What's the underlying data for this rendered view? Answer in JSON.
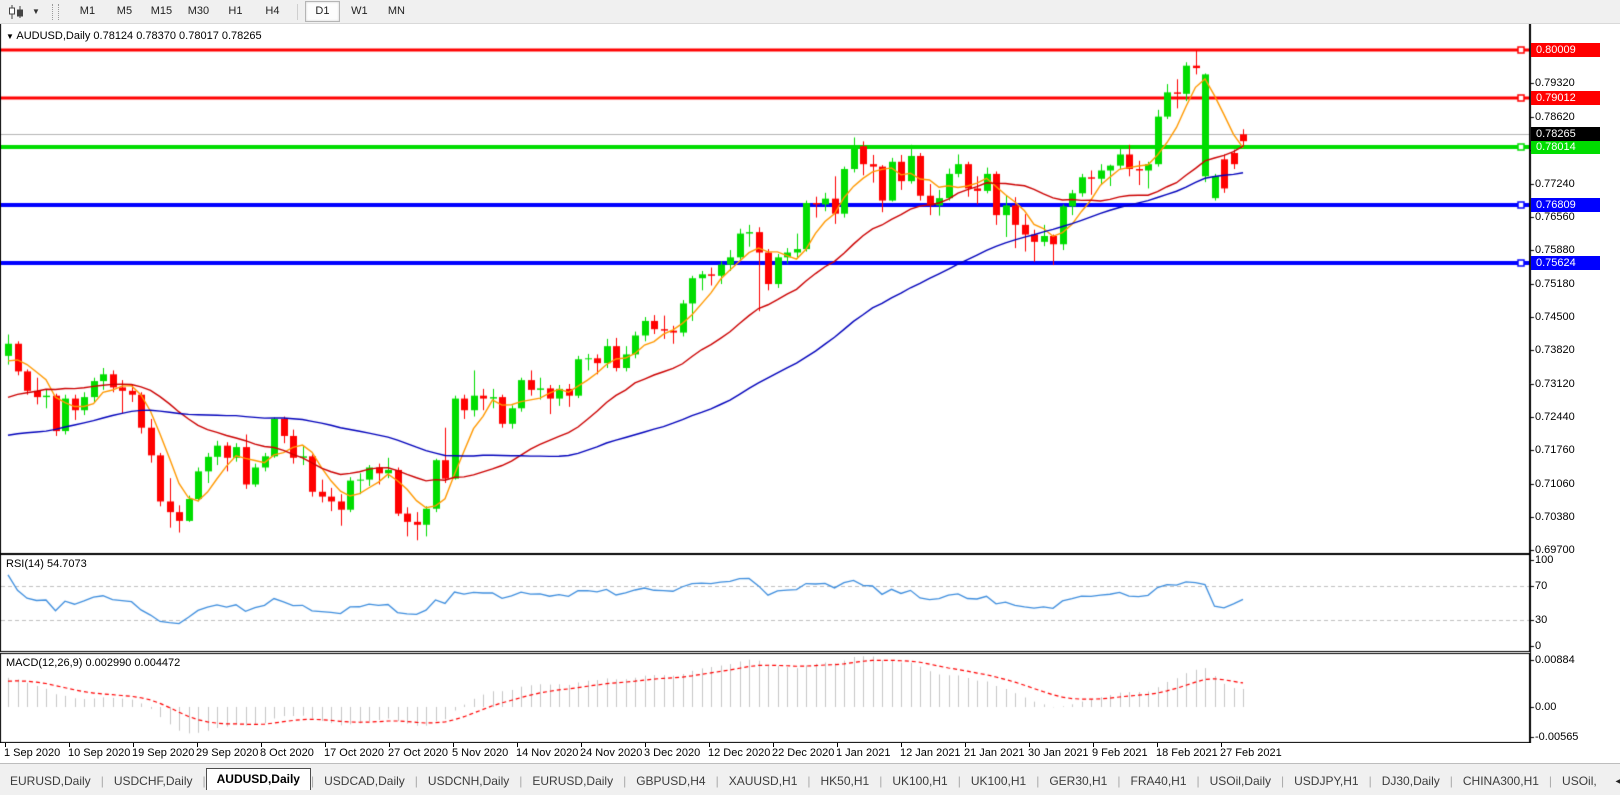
{
  "toolbar": {
    "chart_tool_icon": "candlestick-chart-icon",
    "dropdown_caret": "▼",
    "timeframes": [
      "M1",
      "M5",
      "M15",
      "M30",
      "H1",
      "H4",
      "D1",
      "W1",
      "MN"
    ],
    "active_timeframe": "D1",
    "group_break_after": "H4"
  },
  "chart": {
    "title_caret": "▼",
    "symbol_title": "AUDUSD,Daily",
    "ohlc_text": "0.78124 0.78370 0.78017 0.78265",
    "rsi_label": "RSI(14) 54.7073",
    "macd_label": "MACD(12,26,9) 0.002990 0.004472"
  },
  "chart_data": {
    "type": "candlestick",
    "symbol": "AUDUSD",
    "timeframe": "Daily",
    "ohlc_header": {
      "open": 0.78124,
      "high": 0.7837,
      "low": 0.78017,
      "close": 0.78265
    },
    "price_range": {
      "max": 0.80518,
      "min": 0.69638
    },
    "price_axis_ticks": [
      "0.79320",
      "0.78620",
      "0.77940",
      "0.77240",
      "0.76560",
      "0.75880",
      "0.75180",
      "0.74500",
      "0.73820",
      "0.73120",
      "0.72440",
      "0.71760",
      "0.71060",
      "0.70380",
      "0.69700"
    ],
    "hlines": [
      {
        "price": 0.80009,
        "label": "0.80009",
        "color": "#ff0000",
        "width": 3
      },
      {
        "price": 0.79012,
        "label": "0.79012",
        "color": "#ff0000",
        "width": 3
      },
      {
        "price": 0.78014,
        "label": "0.78014",
        "color": "#00dd00",
        "width": 4
      },
      {
        "price": 0.76809,
        "label": "0.76809",
        "color": "#0000ff",
        "width": 4
      },
      {
        "price": 0.75624,
        "label": "0.75624",
        "color": "#0000ff",
        "width": 4
      }
    ],
    "current_price": {
      "price": 0.78265,
      "label": "0.78265",
      "line_color": "#b4b4b4",
      "badge_color": "#000000"
    },
    "candle_colors": {
      "bull": "#00dd00",
      "bear": "#ff0000"
    },
    "x_labels": [
      "1 Sep 2020",
      "10 Sep 2020",
      "19 Sep 2020",
      "29 Sep 2020",
      "8 Oct 2020",
      "17 Oct 2020",
      "27 Oct 2020",
      "5 Nov 2020",
      "14 Nov 2020",
      "24 Nov 2020",
      "3 Dec 2020",
      "12 Dec 2020",
      "22 Dec 2020",
      "1 Jan 2021",
      "12 Jan 2021",
      "21 Jan 2021",
      "30 Jan 2021",
      "9 Feb 2021",
      "18 Feb 2021",
      "27 Feb 2021"
    ],
    "moving_averages": [
      {
        "name": "fast-ma",
        "period": 5,
        "color": "#ff9900"
      },
      {
        "name": "mid-ma",
        "period": 20,
        "color": "#cc0000"
      },
      {
        "name": "slow-ma",
        "period": 45,
        "color": "#0000bb"
      }
    ],
    "indicator_warmup_closes": [
      0.705,
      0.7062,
      0.7075,
      0.7088,
      0.7102,
      0.709,
      0.7078,
      0.7095,
      0.7112,
      0.7128,
      0.7145,
      0.7162,
      0.7152,
      0.714,
      0.7155,
      0.7172,
      0.7188,
      0.7205,
      0.7193,
      0.718,
      0.7198,
      0.7215,
      0.7232,
      0.722,
      0.7208,
      0.7225,
      0.7242,
      0.726,
      0.7248,
      0.7265,
      0.7282,
      0.727,
      0.7288,
      0.7305,
      0.7322,
      0.731,
      0.7328,
      0.7345,
      0.7362,
      0.7368
    ],
    "candles": [
      [
        0.737,
        0.7414,
        0.7352,
        0.7395
      ],
      [
        0.7395,
        0.74,
        0.733,
        0.7338
      ],
      [
        0.7338,
        0.7342,
        0.729,
        0.7298
      ],
      [
        0.7298,
        0.7325,
        0.727,
        0.7285
      ],
      [
        0.7285,
        0.73,
        0.7262,
        0.7288
      ],
      [
        0.7288,
        0.7292,
        0.7205,
        0.7215
      ],
      [
        0.7215,
        0.729,
        0.7208,
        0.7282
      ],
      [
        0.7282,
        0.729,
        0.7238,
        0.7258
      ],
      [
        0.7258,
        0.7295,
        0.7248,
        0.7285
      ],
      [
        0.7285,
        0.7325,
        0.7275,
        0.7318
      ],
      [
        0.7318,
        0.7345,
        0.73,
        0.7332
      ],
      [
        0.7332,
        0.734,
        0.7295,
        0.7305
      ],
      [
        0.7305,
        0.732,
        0.7252,
        0.7298
      ],
      [
        0.7298,
        0.731,
        0.7275,
        0.729
      ],
      [
        0.729,
        0.7295,
        0.721,
        0.7222
      ],
      [
        0.7222,
        0.724,
        0.715,
        0.7165
      ],
      [
        0.7165,
        0.717,
        0.706,
        0.707
      ],
      [
        0.707,
        0.7118,
        0.7016,
        0.7048
      ],
      [
        0.7048,
        0.7062,
        0.7006,
        0.703
      ],
      [
        0.703,
        0.7082,
        0.7028,
        0.7075
      ],
      [
        0.7075,
        0.714,
        0.707,
        0.7132
      ],
      [
        0.7132,
        0.717,
        0.7108,
        0.7162
      ],
      [
        0.7162,
        0.7195,
        0.7145,
        0.7185
      ],
      [
        0.7185,
        0.7192,
        0.7132,
        0.716
      ],
      [
        0.716,
        0.719,
        0.7152,
        0.7182
      ],
      [
        0.7182,
        0.7208,
        0.7096,
        0.7105
      ],
      [
        0.7105,
        0.7148,
        0.71,
        0.714
      ],
      [
        0.714,
        0.717,
        0.7132,
        0.7163
      ],
      [
        0.7163,
        0.7243,
        0.716,
        0.724
      ],
      [
        0.724,
        0.7245,
        0.719,
        0.7205
      ],
      [
        0.7205,
        0.7218,
        0.7148,
        0.716
      ],
      [
        0.716,
        0.7185,
        0.7145,
        0.7163
      ],
      [
        0.7163,
        0.7167,
        0.708,
        0.709
      ],
      [
        0.709,
        0.7115,
        0.7068,
        0.708
      ],
      [
        0.708,
        0.7098,
        0.705,
        0.707
      ],
      [
        0.707,
        0.7085,
        0.702,
        0.7053
      ],
      [
        0.7053,
        0.712,
        0.7048,
        0.7113
      ],
      [
        0.7113,
        0.7128,
        0.7085,
        0.7115
      ],
      [
        0.7115,
        0.7145,
        0.7102,
        0.714
      ],
      [
        0.714,
        0.7148,
        0.7105,
        0.7128
      ],
      [
        0.7128,
        0.716,
        0.7118,
        0.7135
      ],
      [
        0.7135,
        0.714,
        0.704,
        0.7045
      ],
      [
        0.7045,
        0.7058,
        0.6998,
        0.7028
      ],
      [
        0.7028,
        0.7048,
        0.699,
        0.7022
      ],
      [
        0.7022,
        0.706,
        0.6998,
        0.7055
      ],
      [
        0.7055,
        0.7158,
        0.7048,
        0.7155
      ],
      [
        0.7155,
        0.7222,
        0.7108,
        0.7117
      ],
      [
        0.7117,
        0.7288,
        0.7115,
        0.7282
      ],
      [
        0.7282,
        0.729,
        0.724,
        0.7258
      ],
      [
        0.7258,
        0.734,
        0.7245,
        0.7288
      ],
      [
        0.7288,
        0.7302,
        0.7258,
        0.7282
      ],
      [
        0.7282,
        0.7302,
        0.7262,
        0.7285
      ],
      [
        0.7285,
        0.729,
        0.7222,
        0.723
      ],
      [
        0.723,
        0.7268,
        0.722,
        0.7262
      ],
      [
        0.7262,
        0.7325,
        0.7255,
        0.732
      ],
      [
        0.732,
        0.734,
        0.7288,
        0.73
      ],
      [
        0.73,
        0.7325,
        0.728,
        0.7303
      ],
      [
        0.7303,
        0.731,
        0.725,
        0.7282
      ],
      [
        0.7282,
        0.731,
        0.7267,
        0.7302
      ],
      [
        0.7302,
        0.7312,
        0.7265,
        0.7288
      ],
      [
        0.7288,
        0.737,
        0.7283,
        0.7363
      ],
      [
        0.7363,
        0.7374,
        0.734,
        0.7365
      ],
      [
        0.7365,
        0.7373,
        0.7332,
        0.7355
      ],
      [
        0.7355,
        0.7405,
        0.7345,
        0.739
      ],
      [
        0.739,
        0.7407,
        0.7338,
        0.7345
      ],
      [
        0.7345,
        0.739,
        0.7338,
        0.7373
      ],
      [
        0.7373,
        0.742,
        0.7365,
        0.7412
      ],
      [
        0.7412,
        0.745,
        0.74,
        0.7442
      ],
      [
        0.7442,
        0.7454,
        0.7415,
        0.7425
      ],
      [
        0.7425,
        0.7453,
        0.7405,
        0.7422
      ],
      [
        0.7422,
        0.7432,
        0.7395,
        0.7418
      ],
      [
        0.7418,
        0.7485,
        0.741,
        0.7478
      ],
      [
        0.7478,
        0.7535,
        0.7442,
        0.753
      ],
      [
        0.753,
        0.7545,
        0.7505,
        0.7538
      ],
      [
        0.7538,
        0.7552,
        0.7515,
        0.7535
      ],
      [
        0.7535,
        0.7565,
        0.7518,
        0.7558
      ],
      [
        0.7558,
        0.7588,
        0.7545,
        0.7573
      ],
      [
        0.7573,
        0.7632,
        0.7568,
        0.7622
      ],
      [
        0.7622,
        0.764,
        0.7595,
        0.7625
      ],
      [
        0.7625,
        0.7635,
        0.7462,
        0.7583
      ],
      [
        0.7583,
        0.759,
        0.7505,
        0.7518
      ],
      [
        0.7518,
        0.758,
        0.751,
        0.7573
      ],
      [
        0.7573,
        0.7592,
        0.756,
        0.7583
      ],
      [
        0.7583,
        0.7622,
        0.7572,
        0.759
      ],
      [
        0.759,
        0.769,
        0.7585,
        0.7685
      ],
      [
        0.7685,
        0.7698,
        0.7655,
        0.7682
      ],
      [
        0.7682,
        0.7706,
        0.7668,
        0.7694
      ],
      [
        0.7694,
        0.774,
        0.7642,
        0.7663
      ],
      [
        0.7663,
        0.776,
        0.7655,
        0.7755
      ],
      [
        0.7755,
        0.782,
        0.7748,
        0.7802
      ],
      [
        0.7802,
        0.7812,
        0.7742,
        0.7765
      ],
      [
        0.7765,
        0.7784,
        0.7727,
        0.776
      ],
      [
        0.776,
        0.7763,
        0.7666,
        0.769
      ],
      [
        0.769,
        0.7778,
        0.7688,
        0.777
      ],
      [
        0.777,
        0.7784,
        0.7712,
        0.773
      ],
      [
        0.773,
        0.7805,
        0.7725,
        0.7782
      ],
      [
        0.7782,
        0.7788,
        0.769,
        0.77
      ],
      [
        0.77,
        0.7724,
        0.766,
        0.768
      ],
      [
        0.768,
        0.7712,
        0.7659,
        0.7695
      ],
      [
        0.7695,
        0.7756,
        0.769,
        0.7745
      ],
      [
        0.7745,
        0.7785,
        0.7738,
        0.7765
      ],
      [
        0.7765,
        0.777,
        0.7698,
        0.7715
      ],
      [
        0.7715,
        0.774,
        0.7682,
        0.771
      ],
      [
        0.771,
        0.7758,
        0.7705,
        0.7745
      ],
      [
        0.7745,
        0.775,
        0.764,
        0.766
      ],
      [
        0.766,
        0.77,
        0.7615,
        0.768
      ],
      [
        0.768,
        0.7697,
        0.7592,
        0.764
      ],
      [
        0.764,
        0.7662,
        0.7585,
        0.762
      ],
      [
        0.762,
        0.763,
        0.7564,
        0.7605
      ],
      [
        0.7605,
        0.764,
        0.7596,
        0.7617
      ],
      [
        0.7617,
        0.762,
        0.7557,
        0.76
      ],
      [
        0.76,
        0.7682,
        0.7588,
        0.7678
      ],
      [
        0.7678,
        0.7712,
        0.766,
        0.7705
      ],
      [
        0.7705,
        0.7745,
        0.7698,
        0.7738
      ],
      [
        0.7738,
        0.7752,
        0.7702,
        0.7735
      ],
      [
        0.7735,
        0.7765,
        0.7722,
        0.7752
      ],
      [
        0.7752,
        0.7764,
        0.772,
        0.7762
      ],
      [
        0.7762,
        0.78,
        0.7755,
        0.7785
      ],
      [
        0.7785,
        0.7805,
        0.774,
        0.7755
      ],
      [
        0.7755,
        0.7772,
        0.7722,
        0.7752
      ],
      [
        0.7752,
        0.777,
        0.7715,
        0.7765
      ],
      [
        0.7765,
        0.7877,
        0.776,
        0.7863
      ],
      [
        0.7863,
        0.793,
        0.7858,
        0.7913
      ],
      [
        0.7913,
        0.794,
        0.788,
        0.791
      ],
      [
        0.791,
        0.7975,
        0.7895,
        0.7968
      ],
      [
        0.7968,
        0.8001,
        0.795,
        0.7963
      ],
      [
        0.774,
        0.7952,
        0.7728,
        0.795
      ],
      [
        0.7695,
        0.7745,
        0.769,
        0.774
      ],
      [
        0.7775,
        0.7785,
        0.7706,
        0.7715
      ],
      [
        0.7788,
        0.7795,
        0.7755,
        0.7765
      ],
      [
        0.78124,
        0.7837,
        0.78017,
        0.78265,
        "R"
      ]
    ],
    "rsi": {
      "title": "RSI(14) 54.7073",
      "period": 14,
      "last_value": 54.7073,
      "axis_labels": [
        "100",
        "70",
        "30",
        "0"
      ],
      "dashed_levels": [
        70,
        30
      ],
      "line_color": "#3e8ede",
      "level_color": "#c0c0c0"
    },
    "macd": {
      "title": "MACD(12,26,9) 0.002990 0.004472",
      "fast": 12,
      "slow": 26,
      "signal": 9,
      "last_main": 0.00299,
      "last_signal": 0.004472,
      "axis_labels": [
        "0.00884",
        "0.00",
        "-0.00565"
      ],
      "range": {
        "max": 0.00884,
        "min": -0.00565
      },
      "histogram_color": "#c6c6c6",
      "signal_color": "#ff0000"
    }
  },
  "tabs": {
    "items": [
      "EURUSD,Daily",
      "USDCHF,Daily",
      "AUDUSD,Daily",
      "USDCAD,Daily",
      "USDCNH,Daily",
      "EURUSD,Daily",
      "GBPUSD,H4",
      "XAUUSD,H1",
      "HK50,H1",
      "UK100,H1",
      "UK100,H1",
      "GER30,H1",
      "FRA40,H1",
      "USOil,Daily",
      "USDJPY,H1",
      "DJ30,Daily",
      "CHINA300,H1",
      "USOil,"
    ],
    "active_index": 2,
    "scroll_left": "◄",
    "scroll_right": "►"
  }
}
